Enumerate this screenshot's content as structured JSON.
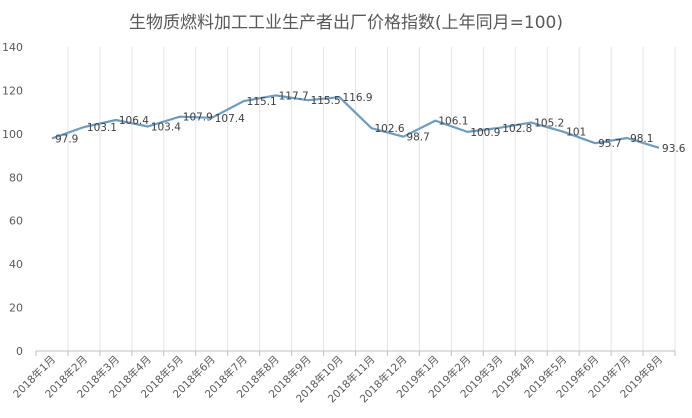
{
  "chart_data": {
    "type": "line",
    "title": "生物质燃料加工工业生产者出厂价格指数(上年同月=100)",
    "xlabel": "",
    "ylabel": "",
    "ylim": [
      0,
      140
    ],
    "yticks": [
      0,
      20,
      40,
      60,
      80,
      100,
      120,
      140
    ],
    "grid": "vertical",
    "legend": "none",
    "series_color": "#6E9CC0",
    "categories": [
      "2018年1月",
      "2018年2月",
      "2018年3月",
      "2018年4月",
      "2018年5月",
      "2018年6月",
      "2018年7月",
      "2018年8月",
      "2018年9月",
      "2018年10月",
      "2018年11月",
      "2018年12月",
      "2019年1月",
      "2019年2月",
      "2019年3月",
      "2019年4月",
      "2019年5月",
      "2019年6月",
      "2019年7月",
      "2019年8月"
    ],
    "series": [
      {
        "values": [
          97.9,
          103.1,
          106.4,
          103.4,
          107.9,
          107.4,
          115.1,
          117.7,
          115.5,
          116.9,
          102.6,
          98.7,
          106.1,
          100.9,
          102.8,
          105.2,
          101,
          95.7,
          98.1,
          93.6
        ],
        "labels": [
          "97.9",
          "103.1",
          "106.4",
          "103.4",
          "107.9",
          "107.4",
          "115.1",
          "117.7",
          "115.5",
          "116.9",
          "102.6",
          "98.7",
          "106.1",
          "100.9",
          "102.8",
          "105.2",
          "101",
          "95.7",
          "98.1",
          "93.6"
        ]
      }
    ]
  }
}
